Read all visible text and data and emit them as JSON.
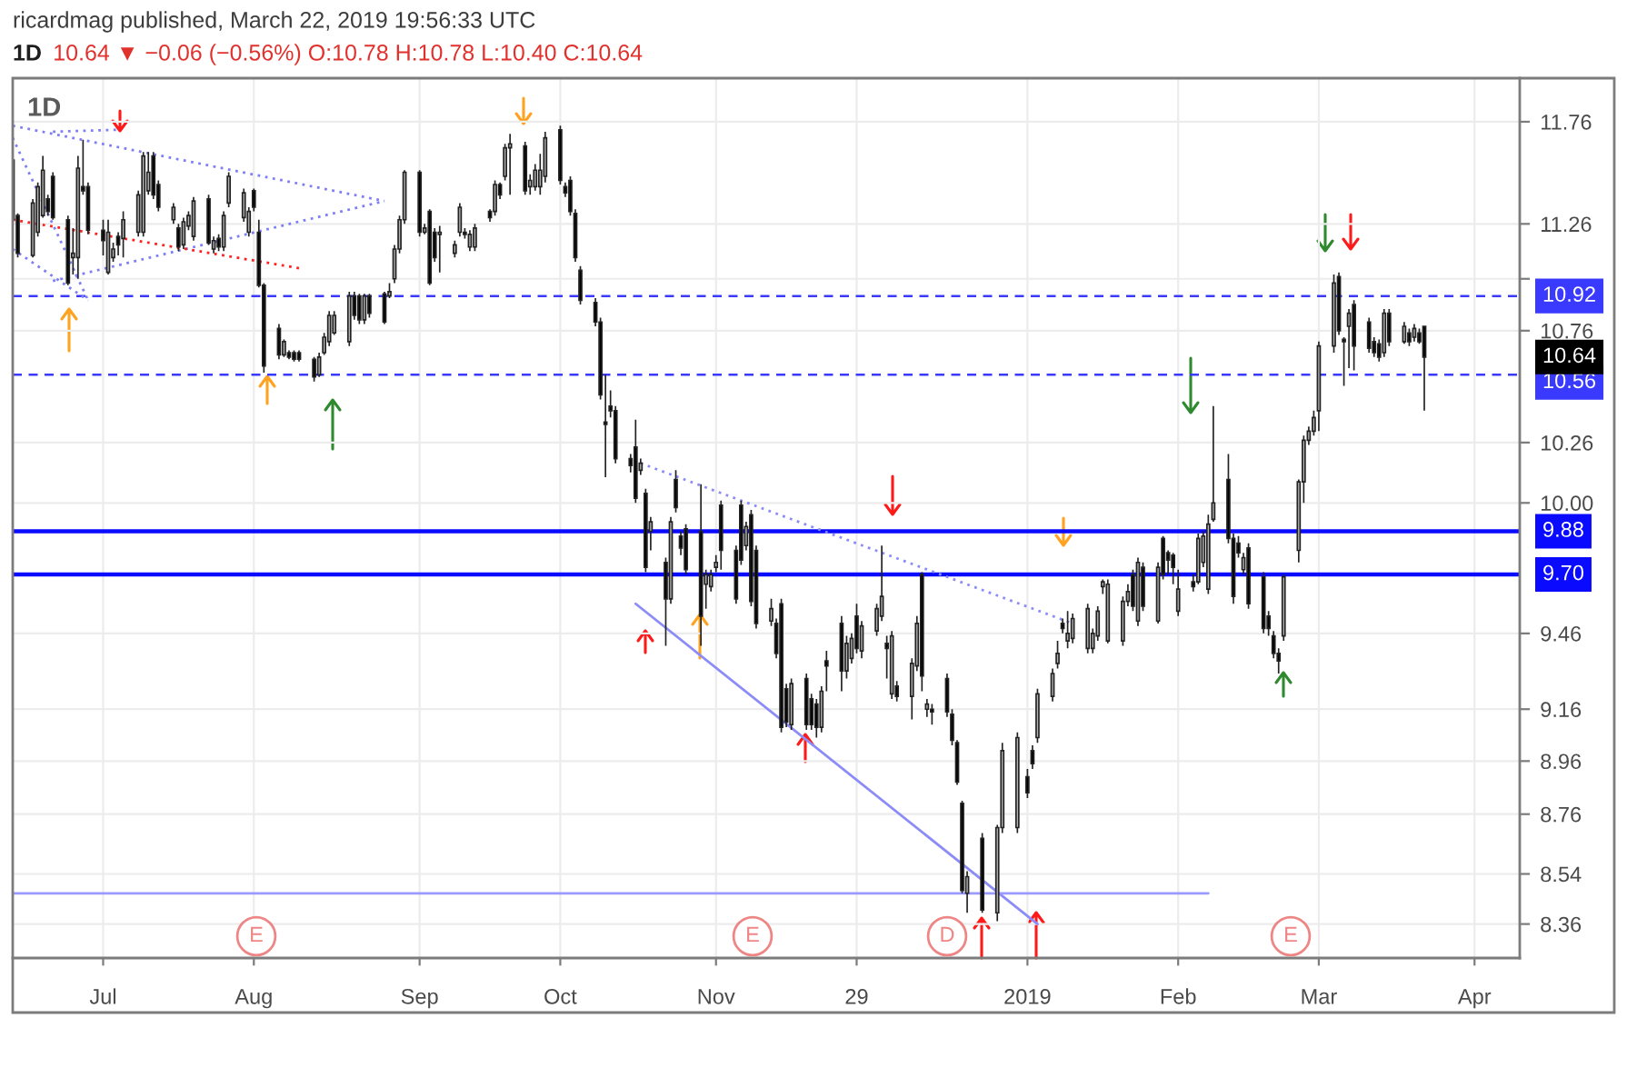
{
  "chart_data": {
    "type": "candlestick",
    "title": "1D",
    "subtitle": "1D",
    "annotations": [
      "ricardmag published, March 22, 2019 19:56:33 UTC",
      "10.64 ▼ −0.06 (−0.56%) O:10.78 H:10.78 L:10.40 C:10.64",
      "E",
      "E",
      "D",
      "E",
      "10.64"
    ],
    "log": true,
    "grid": true,
    "ylim": [
      8.24,
      11.98
    ],
    "yticks": [
      11.76,
      11.26,
      {
        "value": 11.0,
        "label": null
      },
      10.76,
      10.26,
      {
        "value": 10.0,
        "label": "10.00"
      },
      9.46,
      9.16,
      8.96,
      8.76,
      8.54,
      8.36
    ],
    "xlim": [
      "2018-06-14",
      "2019-04-10"
    ],
    "xticks": [
      {
        "value": "2018-07-02",
        "label": "Jul"
      },
      {
        "value": "2018-08-01",
        "label": "Aug"
      },
      {
        "value": "2018-09-03",
        "label": "Sep"
      },
      {
        "value": "2018-10-01",
        "label": "Oct"
      },
      {
        "value": "2018-11-01",
        "label": "Nov"
      },
      {
        "value": "2018-11-29",
        "label": "29"
      },
      {
        "value": "2019-01-02",
        "label": "2019"
      },
      {
        "value": "2019-02-01",
        "label": "Feb"
      },
      {
        "value": "2019-03-01",
        "label": "Mar"
      },
      {
        "value": "2019-04-01",
        "label": "Apr"
      }
    ],
    "ref_lines": [
      {
        "axis": "y",
        "value": 10.92,
        "label": "10.92",
        "color": "#3a3aff",
        "line_style": "dashed"
      },
      {
        "axis": "y",
        "value": 10.56,
        "label": "10.56",
        "color": "#3a3aff",
        "line_style": "dashed"
      },
      {
        "axis": "y",
        "value": 9.88,
        "label": "9.88",
        "color": "#0a0aff",
        "line_style": "solid"
      },
      {
        "axis": "y",
        "value": 9.7,
        "label": "9.70",
        "color": "#0a0aff",
        "line_style": "solid"
      }
    ],
    "series": [
      {
        "color": "#222222",
        "x": [
          "2018-06-14",
          "2018-06-15",
          "2018-06-18",
          "2018-06-19",
          "2018-06-20",
          "2018-06-21",
          "2018-06-22",
          "2018-06-25",
          "2018-06-26",
          "2018-06-27",
          "2018-06-28",
          "2018-06-29",
          "2018-07-02",
          "2018-07-03",
          "2018-07-04",
          "2018-07-05",
          "2018-07-06",
          "2018-07-09",
          "2018-07-10",
          "2018-07-11",
          "2018-07-12",
          "2018-07-13",
          "2018-07-16",
          "2018-07-17",
          "2018-07-18",
          "2018-07-19",
          "2018-07-20",
          "2018-07-23",
          "2018-07-24",
          "2018-07-25",
          "2018-07-26",
          "2018-07-27",
          "2018-07-30",
          "2018-07-31",
          "2018-08-01",
          "2018-08-02",
          "2018-08-03",
          "2018-08-06",
          "2018-08-07",
          "2018-08-08",
          "2018-08-09",
          "2018-08-10",
          "2018-08-13",
          "2018-08-14",
          "2018-08-15",
          "2018-08-16",
          "2018-08-17",
          "2018-08-20",
          "2018-08-21",
          "2018-08-22",
          "2018-08-23",
          "2018-08-24",
          "2018-08-27",
          "2018-08-28",
          "2018-08-29",
          "2018-08-30",
          "2018-08-31",
          "2018-09-03",
          "2018-09-04",
          "2018-09-05",
          "2018-09-06",
          "2018-09-07",
          "2018-09-10",
          "2018-09-11",
          "2018-09-12",
          "2018-09-13",
          "2018-09-14",
          "2018-09-17",
          "2018-09-18",
          "2018-09-19",
          "2018-09-20",
          "2018-09-21",
          "2018-09-24",
          "2018-09-25",
          "2018-09-26",
          "2018-09-27",
          "2018-09-28",
          "2018-10-01",
          "2018-10-02",
          "2018-10-03",
          "2018-10-04",
          "2018-10-05",
          "2018-10-08",
          "2018-10-09",
          "2018-10-10",
          "2018-10-11",
          "2018-10-12",
          "2018-10-15",
          "2018-10-16",
          "2018-10-17",
          "2018-10-18",
          "2018-10-19",
          "2018-10-22",
          "2018-10-23",
          "2018-10-24",
          "2018-10-25",
          "2018-10-26",
          "2018-10-29",
          "2018-10-30",
          "2018-10-31",
          "2018-11-01",
          "2018-11-02",
          "2018-11-05",
          "2018-11-06",
          "2018-11-07",
          "2018-11-08",
          "2018-11-09",
          "2018-11-12",
          "2018-11-13",
          "2018-11-14",
          "2018-11-15",
          "2018-11-16",
          "2018-11-19",
          "2018-11-20",
          "2018-11-21",
          "2018-11-22",
          "2018-11-23",
          "2018-11-26",
          "2018-11-27",
          "2018-11-28",
          "2018-11-29",
          "2018-11-30",
          "2018-12-03",
          "2018-12-04",
          "2018-12-05",
          "2018-12-06",
          "2018-12-07",
          "2018-12-10",
          "2018-12-11",
          "2018-12-12",
          "2018-12-13",
          "2018-12-14",
          "2018-12-17",
          "2018-12-18",
          "2018-12-19",
          "2018-12-20",
          "2018-12-21",
          "2018-12-24",
          "2018-12-27",
          "2018-12-28",
          "2018-12-31",
          "2019-01-02",
          "2019-01-03",
          "2019-01-04",
          "2019-01-07",
          "2019-01-08",
          "2019-01-09",
          "2019-01-10",
          "2019-01-11",
          "2019-01-14",
          "2019-01-15",
          "2019-01-16",
          "2019-01-17",
          "2019-01-18",
          "2019-01-21",
          "2019-01-22",
          "2019-01-23",
          "2019-01-24",
          "2019-01-25",
          "2019-01-28",
          "2019-01-29",
          "2019-01-30",
          "2019-01-31",
          "2019-02-01",
          "2019-02-04",
          "2019-02-05",
          "2019-02-06",
          "2019-02-07",
          "2019-02-08",
          "2019-02-11",
          "2019-02-12",
          "2019-02-13",
          "2019-02-14",
          "2019-02-15",
          "2019-02-18",
          "2019-02-19",
          "2019-02-20",
          "2019-02-21",
          "2019-02-22",
          "2019-02-25",
          "2019-02-26",
          "2019-02-27",
          "2019-02-28",
          "2019-03-01",
          "2019-03-04",
          "2019-03-05",
          "2019-03-06",
          "2019-03-07",
          "2019-03-08",
          "2019-03-11",
          "2019-03-12",
          "2019-03-13",
          "2019-03-14",
          "2019-03-15",
          "2019-03-18",
          "2019-03-19",
          "2019-03-20",
          "2019-03-21",
          "2019-03-22"
        ],
        "ohlc": [
          [
            11.57,
            11.58,
            11.27,
            11.28
          ],
          [
            11.3,
            11.31,
            11.1,
            11.12
          ],
          [
            11.11,
            11.38,
            11.1,
            11.36
          ],
          [
            11.22,
            11.46,
            11.2,
            11.44
          ],
          [
            11.3,
            11.59,
            11.29,
            11.52
          ],
          [
            11.38,
            11.4,
            11.3,
            11.32
          ],
          [
            11.49,
            11.51,
            11.28,
            11.29
          ],
          [
            11.28,
            11.3,
            10.97,
            10.98
          ],
          [
            11.1,
            11.24,
            11.02,
            11.12
          ],
          [
            11.1,
            11.59,
            11.0,
            11.53
          ],
          [
            11.44,
            11.67,
            11.4,
            11.42
          ],
          [
            11.44,
            11.46,
            11.21,
            11.23
          ],
          [
            11.23,
            11.28,
            11.11,
            11.18
          ],
          [
            11.03,
            11.28,
            11.02,
            11.22
          ],
          [
            11.1,
            11.17,
            11.08,
            11.14
          ],
          [
            11.2,
            11.22,
            11.11,
            11.16
          ],
          [
            11.19,
            11.32,
            11.1,
            11.28
          ],
          [
            11.22,
            11.42,
            11.2,
            11.4
          ],
          [
            11.22,
            11.61,
            11.2,
            11.59
          ],
          [
            11.42,
            11.61,
            11.4,
            11.51
          ],
          [
            11.59,
            11.61,
            11.38,
            11.4
          ],
          [
            11.45,
            11.47,
            11.32,
            11.34
          ],
          [
            11.28,
            11.36,
            11.26,
            11.34
          ],
          [
            11.24,
            11.26,
            11.13,
            11.15
          ],
          [
            11.16,
            11.29,
            11.14,
            11.27
          ],
          [
            11.25,
            11.32,
            11.23,
            11.3
          ],
          [
            11.2,
            11.39,
            11.18,
            11.37
          ],
          [
            11.38,
            11.4,
            11.16,
            11.17
          ],
          [
            11.14,
            11.2,
            11.12,
            11.18
          ],
          [
            11.19,
            11.21,
            11.13,
            11.15
          ],
          [
            11.15,
            11.32,
            11.13,
            11.3
          ],
          [
            11.36,
            11.51,
            11.34,
            11.49
          ],
          [
            11.29,
            11.43,
            11.27,
            11.41
          ],
          [
            11.22,
            11.34,
            11.2,
            11.32
          ],
          [
            11.42,
            11.43,
            11.32,
            11.34
          ],
          [
            11.22,
            11.28,
            10.96,
            10.97
          ],
          [
            10.97,
            10.98,
            10.57,
            10.6
          ],
          [
            10.77,
            10.79,
            10.63,
            10.65
          ],
          [
            10.65,
            10.72,
            10.64,
            10.71
          ],
          [
            10.66,
            10.67,
            10.63,
            10.64
          ],
          [
            10.66,
            10.67,
            10.62,
            10.63
          ],
          [
            10.66,
            10.67,
            10.62,
            10.63
          ],
          [
            10.63,
            10.64,
            10.53,
            10.55
          ],
          [
            10.56,
            10.66,
            10.55,
            10.64
          ],
          [
            10.66,
            10.75,
            10.65,
            10.73
          ],
          [
            10.71,
            10.85,
            10.69,
            10.83
          ],
          [
            10.75,
            10.85,
            10.74,
            10.83
          ],
          [
            10.71,
            10.94,
            10.69,
            10.92
          ],
          [
            10.92,
            10.94,
            10.81,
            10.83
          ],
          [
            10.92,
            10.93,
            10.79,
            10.81
          ],
          [
            10.81,
            10.93,
            10.79,
            10.92
          ],
          [
            10.92,
            10.93,
            10.82,
            10.84
          ],
          [
            10.93,
            10.94,
            10.79,
            10.8
          ],
          [
            10.92,
            10.98,
            10.91,
            10.94
          ],
          [
            11.0,
            11.16,
            10.98,
            11.14
          ],
          [
            11.14,
            11.3,
            11.12,
            11.28
          ],
          [
            11.28,
            11.52,
            11.26,
            11.51
          ],
          [
            11.51,
            11.52,
            11.2,
            11.22
          ],
          [
            11.22,
            11.26,
            11.21,
            11.24
          ],
          [
            11.32,
            11.33,
            10.97,
            10.98
          ],
          [
            11.22,
            11.24,
            11.08,
            11.1
          ],
          [
            11.21,
            11.25,
            11.03,
            11.22
          ],
          [
            11.12,
            11.18,
            11.1,
            11.16
          ],
          [
            11.22,
            11.36,
            11.2,
            11.34
          ],
          [
            11.22,
            11.24,
            11.19,
            11.21
          ],
          [
            11.15,
            11.23,
            11.13,
            11.21
          ],
          [
            11.15,
            11.26,
            11.13,
            11.24
          ],
          [
            11.32,
            11.33,
            11.27,
            11.29
          ],
          [
            11.32,
            11.47,
            11.3,
            11.45
          ],
          [
            11.45,
            11.46,
            11.38,
            11.4
          ],
          [
            11.49,
            11.65,
            11.47,
            11.63
          ],
          [
            11.63,
            11.7,
            11.4,
            11.65
          ],
          [
            11.64,
            11.66,
            11.4,
            11.42
          ],
          [
            11.44,
            11.5,
            11.4,
            11.47
          ],
          [
            11.44,
            11.55,
            11.42,
            11.52
          ],
          [
            11.44,
            11.6,
            11.4,
            11.52
          ],
          [
            11.49,
            11.71,
            11.46,
            11.68
          ],
          [
            11.72,
            11.74,
            11.45,
            11.47
          ],
          [
            11.44,
            11.46,
            11.39,
            11.41
          ],
          [
            11.47,
            11.49,
            11.3,
            11.32
          ],
          [
            11.31,
            11.33,
            11.08,
            11.1
          ],
          [
            11.04,
            11.06,
            10.88,
            10.9
          ],
          [
            10.89,
            10.91,
            10.78,
            10.8
          ],
          [
            10.8,
            10.82,
            10.45,
            10.47
          ],
          [
            10.35,
            10.56,
            10.11,
            10.34
          ],
          [
            10.42,
            10.49,
            10.37,
            10.4
          ],
          [
            10.4,
            10.42,
            10.17,
            10.19
          ],
          [
            10.19,
            10.21,
            10.13,
            10.16
          ],
          [
            10.24,
            10.36,
            10.0,
            10.02
          ],
          [
            10.14,
            10.19,
            10.12,
            10.17
          ],
          [
            10.04,
            10.06,
            9.71,
            9.73
          ],
          [
            9.88,
            9.94,
            9.8,
            9.92
          ],
          [
            9.75,
            9.77,
            9.41,
            9.6
          ],
          [
            9.6,
            9.94,
            9.58,
            9.92
          ],
          [
            10.1,
            10.14,
            9.96,
            9.98
          ],
          [
            9.86,
            9.88,
            9.78,
            9.81
          ],
          [
            9.89,
            9.91,
            9.7,
            9.72
          ],
          [
            9.88,
            10.08,
            9.41,
            9.53
          ],
          [
            9.66,
            9.72,
            9.56,
            9.7
          ],
          [
            9.65,
            9.72,
            9.63,
            9.7
          ],
          [
            9.73,
            9.78,
            9.71,
            9.75
          ],
          [
            9.99,
            10.01,
            9.72,
            9.8
          ],
          [
            9.8,
            9.82,
            9.58,
            9.6
          ],
          [
            9.99,
            10.01,
            9.74,
            9.76
          ],
          [
            9.82,
            9.92,
            9.8,
            9.9
          ],
          [
            9.95,
            9.97,
            9.57,
            9.59
          ],
          [
            9.8,
            9.82,
            9.48,
            9.5
          ],
          [
            9.51,
            9.6,
            9.49,
            9.56
          ],
          [
            9.5,
            9.52,
            9.36,
            9.38
          ],
          [
            9.58,
            9.6,
            9.07,
            9.09
          ],
          [
            9.24,
            9.26,
            9.09,
            9.11
          ],
          [
            9.1,
            9.28,
            9.08,
            9.26
          ],
          [
            9.28,
            9.3,
            9.08,
            9.1
          ],
          [
            9.2,
            9.22,
            9.08,
            9.1
          ],
          [
            9.18,
            9.2,
            9.05,
            9.09
          ],
          [
            9.09,
            9.25,
            9.07,
            9.23
          ],
          [
            9.35,
            9.39,
            9.23,
            9.33
          ],
          [
            9.5,
            9.53,
            9.23,
            9.31
          ],
          [
            9.31,
            9.45,
            9.28,
            9.42
          ],
          [
            9.36,
            9.46,
            9.34,
            9.44
          ],
          [
            9.53,
            9.58,
            9.38,
            9.4
          ],
          [
            9.39,
            9.51,
            9.36,
            9.49
          ],
          [
            9.47,
            9.58,
            9.45,
            9.56
          ],
          [
            9.53,
            9.82,
            9.51,
            9.61
          ],
          [
            9.42,
            9.45,
            9.28,
            9.4
          ],
          [
            9.22,
            9.47,
            9.2,
            9.45
          ],
          [
            9.25,
            9.27,
            9.19,
            9.21
          ],
          [
            9.21,
            9.36,
            9.12,
            9.34
          ],
          [
            9.33,
            9.53,
            9.31,
            9.5
          ],
          [
            9.7,
            9.71,
            9.23,
            9.29
          ],
          [
            9.16,
            9.2,
            9.13,
            9.18
          ],
          [
            9.16,
            9.18,
            9.1,
            9.15
          ],
          [
            9.28,
            9.3,
            9.13,
            9.15
          ],
          [
            9.14,
            9.16,
            9.02,
            9.04
          ],
          [
            9.03,
            9.04,
            8.87,
            8.88
          ],
          [
            8.8,
            8.81,
            8.47,
            8.48
          ],
          [
            8.47,
            8.55,
            8.4,
            8.53
          ],
          [
            8.67,
            8.69,
            8.4,
            8.41
          ],
          [
            8.4,
            8.72,
            8.37,
            8.71
          ],
          [
            8.71,
            9.03,
            8.69,
            9.0
          ],
          [
            8.71,
            9.07,
            8.69,
            9.05
          ],
          [
            8.9,
            8.93,
            8.82,
            8.84
          ],
          [
            9.0,
            9.02,
            8.93,
            8.95
          ],
          [
            9.05,
            9.24,
            9.03,
            9.22
          ],
          [
            9.21,
            9.32,
            9.19,
            9.3
          ],
          [
            9.34,
            9.43,
            9.32,
            9.38
          ],
          [
            9.5,
            9.52,
            9.46,
            9.48
          ],
          [
            9.43,
            9.55,
            9.4,
            9.46
          ],
          [
            9.44,
            9.54,
            9.42,
            9.52
          ],
          [
            9.4,
            9.58,
            9.38,
            9.56
          ],
          [
            9.4,
            9.48,
            9.38,
            9.46
          ],
          [
            9.45,
            9.57,
            9.43,
            9.55
          ],
          [
            9.65,
            9.68,
            9.62,
            9.67
          ],
          [
            9.43,
            9.68,
            9.42,
            9.66
          ],
          [
            9.43,
            9.61,
            9.41,
            9.59
          ],
          [
            9.59,
            9.66,
            9.57,
            9.63
          ],
          [
            9.7,
            9.72,
            9.55,
            9.57
          ],
          [
            9.51,
            9.77,
            9.49,
            9.75
          ],
          [
            9.73,
            9.75,
            9.55,
            9.57
          ],
          [
            9.51,
            9.75,
            9.5,
            9.73
          ],
          [
            9.85,
            9.86,
            9.68,
            9.7
          ],
          [
            9.79,
            9.8,
            9.7,
            9.76
          ],
          [
            9.78,
            9.79,
            9.66,
            9.73
          ],
          [
            9.55,
            9.72,
            9.53,
            9.64
          ],
          [
            9.67,
            9.7,
            9.63,
            9.65
          ],
          [
            9.67,
            9.87,
            9.66,
            9.85
          ],
          [
            9.75,
            9.88,
            9.73,
            9.86
          ],
          [
            9.64,
            9.95,
            9.62,
            9.91
          ],
          [
            9.93,
            10.42,
            9.92,
            10.0
          ],
          [
            10.1,
            10.21,
            9.83,
            9.85
          ],
          [
            9.85,
            9.87,
            9.58,
            9.61
          ],
          [
            9.83,
            9.86,
            9.77,
            9.79
          ],
          [
            9.72,
            9.79,
            9.7,
            9.77
          ],
          [
            9.81,
            9.83,
            9.56,
            9.58
          ],
          [
            9.69,
            9.71,
            9.46,
            9.48
          ],
          [
            9.53,
            9.55,
            9.45,
            9.48
          ],
          [
            9.45,
            9.47,
            9.36,
            9.38
          ],
          [
            9.38,
            9.4,
            9.3,
            9.35
          ],
          [
            9.45,
            9.7,
            9.43,
            9.69
          ],
          [
            9.8,
            10.1,
            9.75,
            10.09
          ],
          [
            10.09,
            10.29,
            10.0,
            10.27
          ],
          [
            10.27,
            10.33,
            10.25,
            10.31
          ],
          [
            10.31,
            10.4,
            10.29,
            10.37
          ],
          [
            10.4,
            10.71,
            10.31,
            10.69
          ],
          [
            10.69,
            11.02,
            10.66,
            10.98
          ],
          [
            11.01,
            11.03,
            10.74,
            10.76
          ],
          [
            10.72,
            10.73,
            10.51,
            10.71
          ],
          [
            10.78,
            10.86,
            10.59,
            10.84
          ],
          [
            10.88,
            10.9,
            10.58,
            10.69
          ],
          [
            10.8,
            10.82,
            10.66,
            10.68
          ],
          [
            10.71,
            10.73,
            10.64,
            10.66
          ],
          [
            10.7,
            10.72,
            10.62,
            10.64
          ],
          [
            10.66,
            10.86,
            10.64,
            10.84
          ],
          [
            10.84,
            10.86,
            10.69,
            10.71
          ],
          [
            10.71,
            10.8,
            10.7,
            10.78
          ],
          [
            10.75,
            10.77,
            10.69,
            10.71
          ],
          [
            10.73,
            10.79,
            10.71,
            10.77
          ],
          [
            10.75,
            10.77,
            10.7,
            10.71
          ],
          [
            10.78,
            10.78,
            10.4,
            10.64
          ]
        ],
        "colors": [
          "#000000",
          "#000000",
          "#b4b4b4",
          "#b4b4b4",
          "#b4b4b4",
          "#000000",
          "#000000",
          "#000000",
          "#b4b4b4",
          "#b4b4b4",
          "#000000",
          "#000000",
          "#000000",
          "#b4b4b4",
          "#b4b4b4",
          "#000000",
          "#b4b4b4",
          "#b4b4b4",
          "#b4b4b4",
          "#b4b4b4",
          "#000000",
          "#000000",
          "#b4b4b4",
          "#000000",
          "#b4b4b4",
          "#b4b4b4",
          "#b4b4b4",
          "#000000",
          "#b4b4b4",
          "#000000",
          "#b4b4b4",
          "#b4b4b4",
          "#b4b4b4",
          "#b4b4b4",
          "#000000",
          "#000000",
          "#000000",
          "#000000",
          "#b4b4b4",
          "#000000",
          "#000000",
          "#000000",
          "#000000",
          "#b4b4b4",
          "#b4b4b4",
          "#b4b4b4",
          "#b4b4b4",
          "#b4b4b4",
          "#000000",
          "#000000",
          "#b4b4b4",
          "#000000",
          "#000000",
          "#b4b4b4",
          "#b4b4b4",
          "#b4b4b4",
          "#b4b4b4",
          "#000000",
          "#b4b4b4",
          "#000000",
          "#000000",
          "#b4b4b4",
          "#b4b4b4",
          "#b4b4b4",
          "#000000",
          "#b4b4b4",
          "#b4b4b4",
          "#000000",
          "#b4b4b4",
          "#000000",
          "#b4b4b4",
          "#b4b4b4",
          "#000000",
          "#b4b4b4",
          "#b4b4b4",
          "#b4b4b4",
          "#b4b4b4",
          "#000000",
          "#000000",
          "#000000",
          "#000000",
          "#000000",
          "#000000",
          "#000000",
          "#000000",
          "#000000",
          "#000000",
          "#000000",
          "#000000",
          "#b4b4b4",
          "#000000",
          "#b4b4b4",
          "#000000",
          "#b4b4b4",
          "#000000",
          "#000000",
          "#000000",
          "#000000",
          "#b4b4b4",
          "#b4b4b4",
          "#b4b4b4",
          "#000000",
          "#000000",
          "#000000",
          "#b4b4b4",
          "#000000",
          "#000000",
          "#b4b4b4",
          "#000000",
          "#000000",
          "#000000",
          "#b4b4b4",
          "#000000",
          "#000000",
          "#000000",
          "#b4b4b4",
          "#000000",
          "#000000",
          "#b4b4b4",
          "#b4b4b4",
          "#000000",
          "#b4b4b4",
          "#b4b4b4",
          "#b4b4b4",
          "#000000",
          "#b4b4b4",
          "#000000",
          "#b4b4b4",
          "#b4b4b4",
          "#000000",
          "#b4b4b4",
          "#000000",
          "#000000",
          "#000000",
          "#000000",
          "#000000",
          "#b4b4b4",
          "#000000",
          "#b4b4b4",
          "#b4b4b4",
          "#b4b4b4",
          "#000000",
          "#000000",
          "#b4b4b4",
          "#b4b4b4",
          "#b4b4b4",
          "#000000",
          "#b4b4b4",
          "#b4b4b4",
          "#b4b4b4",
          "#b4b4b4",
          "#b4b4b4",
          "#b4b4b4",
          "#b4b4b4",
          "#b4b4b4",
          "#b4b4b4",
          "#000000",
          "#b4b4b4",
          "#000000",
          "#b4b4b4",
          "#000000",
          "#000000",
          "#000000",
          "#b4b4b4",
          "#000000",
          "#b4b4b4",
          "#b4b4b4",
          "#b4b4b4",
          "#b4b4b4",
          "#000000",
          "#000000",
          "#000000",
          "#b4b4b4",
          "#000000",
          "#000000",
          "#000000",
          "#000000",
          "#000000",
          "#b4b4b4",
          "#b4b4b4",
          "#b4b4b4",
          "#b4b4b4",
          "#b4b4b4",
          "#b4b4b4",
          "#b4b4b4",
          "#000000",
          "#000000",
          "#b4b4b4",
          "#000000",
          "#000000",
          "#000000",
          "#000000",
          "#b4b4b4",
          "#000000",
          "#b4b4b4",
          "#000000",
          "#b4b4b4",
          "#000000",
          "#000000"
        ]
      },
      {
        "type": "line",
        "x": [
          "2018-06-14",
          "2018-06-29"
        ],
        "values": [
          11.68,
          10.9
        ],
        "color": "#7e7ef5",
        "line_style": "dotted"
      },
      {
        "type": "line",
        "x": [
          "2018-06-14",
          "2018-06-29"
        ],
        "values": [
          11.14,
          10.9
        ],
        "color": "#7e7ef5",
        "line_style": "dotted"
      },
      {
        "type": "line",
        "x": [
          "2018-06-14",
          "2018-08-27"
        ],
        "values": [
          11.74,
          11.37
        ],
        "color": "#7e7ef5",
        "line_style": "dotted"
      },
      {
        "type": "line",
        "x": [
          "2018-06-22",
          "2018-08-27"
        ],
        "values": [
          10.99,
          11.37
        ],
        "color": "#7e7ef5",
        "line_style": "dotted"
      },
      {
        "type": "line",
        "x": [
          "2018-06-22",
          "2018-07-05"
        ],
        "values": [
          11.71,
          11.72
        ],
        "color": "#7e7ef5",
        "line_style": "dotted"
      },
      {
        "type": "line",
        "x": [
          "2018-06-14",
          "2018-08-10"
        ],
        "values": [
          11.28,
          11.05
        ],
        "color": "#ff2020",
        "line_style": "dotted"
      },
      {
        "type": "line",
        "x": [
          "2018-10-17",
          "2019-01-11"
        ],
        "values": [
          10.17,
          9.5
        ],
        "color": "#8c8cf8",
        "line_style": "dotted"
      },
      {
        "type": "line",
        "x": [
          "2018-10-16",
          "2019-01-04"
        ],
        "values": [
          9.58,
          8.36
        ],
        "color": "#8c8cf8",
        "line_style": "solid"
      },
      {
        "type": "line",
        "x": [
          "2018-06-14",
          "2019-02-07"
        ],
        "values": [
          8.47,
          8.47
        ],
        "color": "#9a9aff",
        "line_style": "solid"
      }
    ]
  }
}
